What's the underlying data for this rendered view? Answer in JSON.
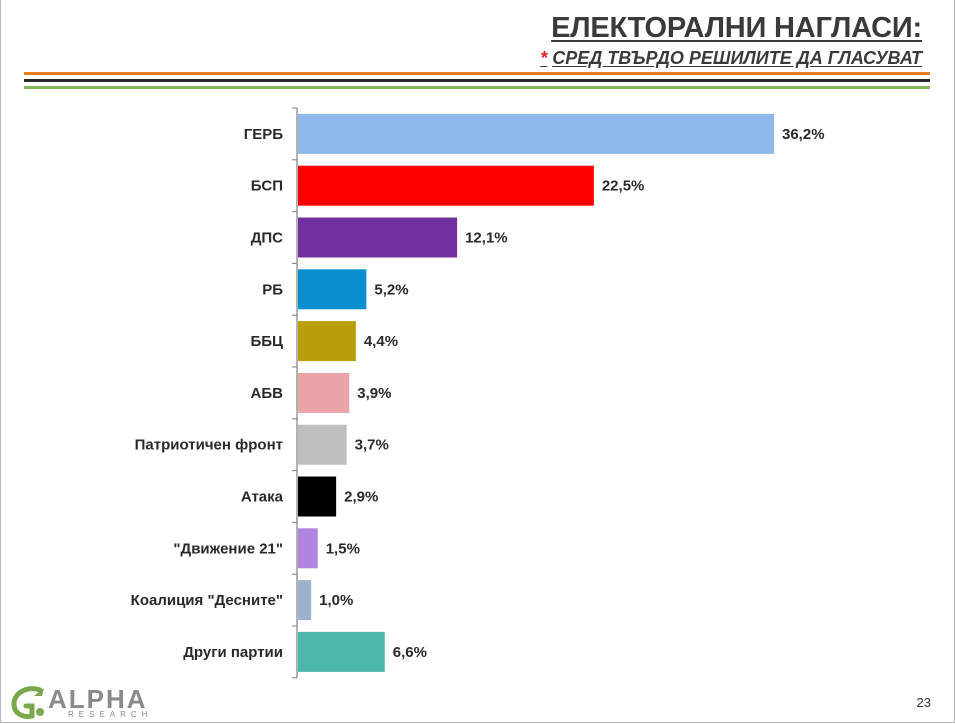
{
  "header": {
    "title": "ЕЛЕКТОРАЛНИ НАГЛАСИ:",
    "subtitle_marker": "*",
    "subtitle": "СРЕД ТВЪРДО РЕШИЛИТЕ ДА ГЛАСУВАТ"
  },
  "chart_data": {
    "type": "bar",
    "orientation": "horizontal",
    "title": "",
    "xlabel": "",
    "ylabel": "",
    "xlim": [
      0,
      36.2
    ],
    "grid": false,
    "legend": "none",
    "categories": [
      "ГЕРБ",
      "БСП",
      "ДПС",
      "РБ",
      "ББЦ",
      "АБВ",
      "Патриотичен фронт",
      "Атака",
      "\"Движение 21\"",
      "Коалиция \"Десните\"",
      "Други партии"
    ],
    "values": [
      36.2,
      22.5,
      12.1,
      5.2,
      4.4,
      3.9,
      3.7,
      2.9,
      1.5,
      1.0,
      6.6
    ],
    "value_labels": [
      "36,2%",
      "22,5%",
      "12,1%",
      "5,2%",
      "4,4%",
      "3,9%",
      "3,7%",
      "2,9%",
      "1,5%",
      "1,0%",
      "6,6%"
    ],
    "colors": [
      "#8fb9ea",
      "#ff0000",
      "#7030a0",
      "#0a8fce",
      "#b89e0a",
      "#e8a4a8",
      "#bfbfbf",
      "#000000",
      "#b084e0",
      "#9bb3cf",
      "#4db8a8"
    ]
  },
  "footer": {
    "logo_icon": "alpha-research-logo-icon",
    "logo_word": "ALPHA",
    "logo_sub": "RESEARCH",
    "page_number": "23"
  }
}
